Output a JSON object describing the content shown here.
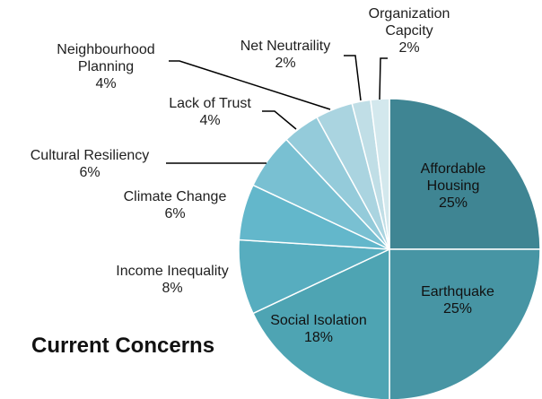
{
  "chart_data": {
    "type": "pie",
    "title": "Current Concerns",
    "categories": [
      "Affordable Housing",
      "Earthquake",
      "Social Isolation",
      "Income Inequality",
      "Climate Change",
      "Cultural Resiliency",
      "Lack of Trust",
      "Neighbourhood Planning",
      "Net Neutraility",
      "Organization Capcity"
    ],
    "values": [
      25,
      25,
      18,
      8,
      6,
      6,
      4,
      4,
      2,
      2
    ],
    "value_labels": [
      "25%",
      "25%",
      "18%",
      "8%",
      "6%",
      "6%",
      "4%",
      "4%",
      "2%",
      "2%"
    ],
    "label_lines": [
      [
        "Affordable",
        "Housing"
      ],
      [
        "Earthquake"
      ],
      [
        "Social Isolation"
      ],
      [
        "Income Inequality"
      ],
      [
        "Climate Change"
      ],
      [
        "Cultural Resiliency"
      ],
      [
        "Lack of Trust"
      ],
      [
        "Neighbourhood",
        "Planning"
      ],
      [
        "Net Neutraility"
      ],
      [
        "Organization",
        "Capcity"
      ]
    ],
    "colors": [
      "#3f8593",
      "#4795a4",
      "#4ea4b3",
      "#57adbf",
      "#63b7cb",
      "#79c0d2",
      "#94cbda",
      "#aad4e0",
      "#c0dee6",
      "#d3e8ed"
    ],
    "legend": "none"
  }
}
